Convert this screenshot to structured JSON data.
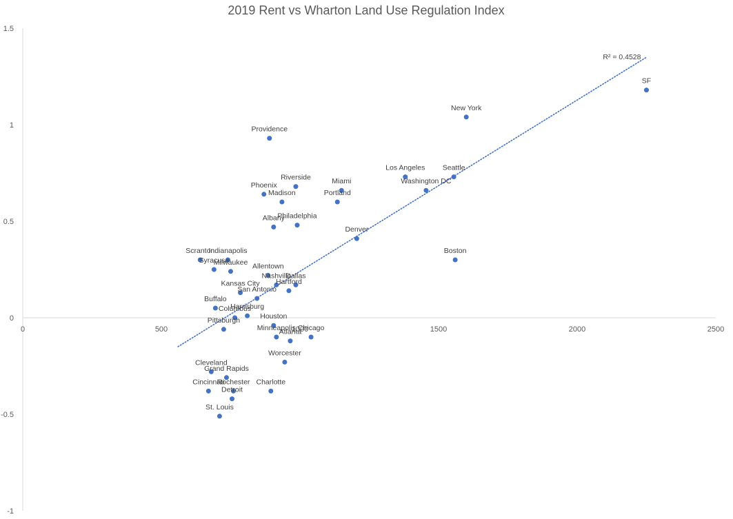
{
  "chart_data": {
    "type": "scatter",
    "title": "2019 Rent vs Wharton Land Use Regulation Index",
    "xlabel": "",
    "ylabel": "",
    "xlim": [
      0,
      2500
    ],
    "ylim": [
      -1,
      1.5
    ],
    "x_ticks": [
      "0",
      "500",
      "1000",
      "1500",
      "2000",
      "2500"
    ],
    "y_ticks": [
      "1.5",
      "1",
      "0.5",
      "0",
      "-0.5",
      "-1"
    ],
    "grid": false,
    "point_color": "#4472C4",
    "trendline": {
      "type": "linear",
      "style": "dotted",
      "color": "#4472C4",
      "r2_label": "R² = 0.4528",
      "x_range": [
        560,
        2250
      ],
      "y_range": [
        -0.15,
        1.35
      ]
    },
    "points": [
      {
        "label": "SF",
        "x": 2250,
        "y": 1.18
      },
      {
        "label": "New York",
        "x": 1600,
        "y": 1.04
      },
      {
        "label": "Providence",
        "x": 890,
        "y": 0.93
      },
      {
        "label": "Los Angeles",
        "x": 1380,
        "y": 0.73
      },
      {
        "label": "Seattle",
        "x": 1555,
        "y": 0.73
      },
      {
        "label": "Washington DC",
        "x": 1455,
        "y": 0.66
      },
      {
        "label": "Riverside",
        "x": 985,
        "y": 0.68
      },
      {
        "label": "Miami",
        "x": 1150,
        "y": 0.66
      },
      {
        "label": "Phoenix",
        "x": 870,
        "y": 0.64
      },
      {
        "label": "Madison",
        "x": 935,
        "y": 0.6
      },
      {
        "label": "Portland",
        "x": 1135,
        "y": 0.6
      },
      {
        "label": "Albany",
        "x": 905,
        "y": 0.47
      },
      {
        "label": "Philadelphia",
        "x": 990,
        "y": 0.48
      },
      {
        "label": "Denver",
        "x": 1205,
        "y": 0.41
      },
      {
        "label": "Boston",
        "x": 1560,
        "y": 0.3
      },
      {
        "label": "Scranton",
        "x": 640,
        "y": 0.3
      },
      {
        "label": "Indianapolis",
        "x": 740,
        "y": 0.3
      },
      {
        "label": "Syracuse",
        "x": 690,
        "y": 0.25
      },
      {
        "label": "Milwaukee",
        "x": 750,
        "y": 0.24
      },
      {
        "label": "Allentown",
        "x": 885,
        "y": 0.22
      },
      {
        "label": "Nashville",
        "x": 915,
        "y": 0.17
      },
      {
        "label": "Dallas",
        "x": 985,
        "y": 0.17
      },
      {
        "label": "Hartford",
        "x": 960,
        "y": 0.14
      },
      {
        "label": "Kansas City",
        "x": 785,
        "y": 0.13
      },
      {
        "label": "San Antonio",
        "x": 845,
        "y": 0.1
      },
      {
        "label": "Buffalo",
        "x": 695,
        "y": 0.05
      },
      {
        "label": "Harrisburg",
        "x": 810,
        "y": 0.01
      },
      {
        "label": "Columbus",
        "x": 765,
        "y": 0.0
      },
      {
        "label": "Houston",
        "x": 905,
        "y": -0.04
      },
      {
        "label": "Pittsburgh",
        "x": 725,
        "y": -0.06
      },
      {
        "label": "Minneapolis",
        "x": 915,
        "y": -0.1
      },
      {
        "label": "Atlanta",
        "x": 965,
        "y": -0.12
      },
      {
        "label": "Chicago",
        "x": 1040,
        "y": -0.1
      },
      {
        "label": "Worcester",
        "x": 945,
        "y": -0.23
      },
      {
        "label": "Cleveland",
        "x": 680,
        "y": -0.28
      },
      {
        "label": "Grand Rapids",
        "x": 735,
        "y": -0.31
      },
      {
        "label": "Cincinnati",
        "x": 670,
        "y": -0.38
      },
      {
        "label": "Rochester",
        "x": 760,
        "y": -0.38
      },
      {
        "label": "Detroit",
        "x": 755,
        "y": -0.42
      },
      {
        "label": "Charlotte",
        "x": 895,
        "y": -0.38
      },
      {
        "label": "St. Louis",
        "x": 710,
        "y": -0.51
      }
    ]
  }
}
